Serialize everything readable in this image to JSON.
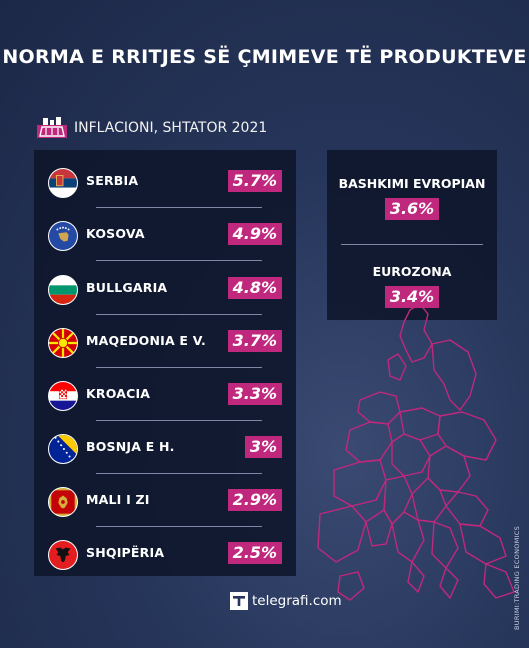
{
  "header": {
    "title": "NORMA E RRITJES SË ÇMIMEVE TË PRODUKTEVE",
    "subtitle": "INFLACIONI, SHTATOR 2021"
  },
  "colors": {
    "accent": "#c0287e",
    "panel": "#0e162a",
    "background": "#26355a"
  },
  "chart_data": {
    "type": "table",
    "title": "NORMA E RRITJES SË ÇMIMEVE TË PRODUKTEVE",
    "subtitle": "INFLACIONI, SHTATOR 2021",
    "rows": [
      {
        "country": "SERBIA",
        "label": "5.7%",
        "value": 5.7,
        "flag": "serbia-flag"
      },
      {
        "country": "KOSOVA",
        "label": "4.9%",
        "value": 4.9,
        "flag": "kosovo-flag"
      },
      {
        "country": "BULLGARIA",
        "label": "4.8%",
        "value": 4.8,
        "flag": "bulgaria-flag"
      },
      {
        "country": "MAQEDONIA E V.",
        "label": "3.7%",
        "value": 3.7,
        "flag": "north-macedonia-flag"
      },
      {
        "country": "KROACIA",
        "label": "3.3%",
        "value": 3.3,
        "flag": "croatia-flag"
      },
      {
        "country": "BOSNJA E H.",
        "label": "3%",
        "value": 3,
        "flag": "bosnia-flag"
      },
      {
        "country": "MALI I ZI",
        "label": "2.9%",
        "value": 2.9,
        "flag": "montenegro-flag"
      },
      {
        "country": "SHQIPËRIA",
        "label": "2.5%",
        "value": 2.5,
        "flag": "albania-flag"
      }
    ],
    "comparisons": [
      {
        "region": "BASHKIMI EVROPIAN",
        "label": "3.6%",
        "value": 3.6
      },
      {
        "region": "EUROZONA",
        "label": "3.4%",
        "value": 3.4
      }
    ]
  },
  "source": "BURIMI:TRADING ECONOMICS",
  "logo": {
    "text": "telegrafi.com"
  }
}
